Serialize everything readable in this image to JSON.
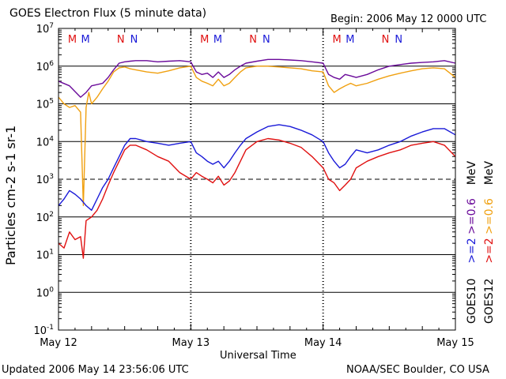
{
  "header": {
    "title": "GOES Electron Flux (5 minute data)",
    "begin": "Begin: 2006 May 12 0000 UTC"
  },
  "footer": {
    "updated": "Updated 2006 May 14 23:56:06 UTC",
    "credit": "NOAA/SEC Boulder, CO USA"
  },
  "colors": {
    "goes10_e06": "#1a1ad8",
    "goes10_e2": "#e01010",
    "goes12_e06": "#6a0a9a",
    "goes12_e2": "#f0a010",
    "marker_m": "#e01010",
    "marker_n": "#1a1ad8"
  },
  "legend": {
    "goes10_label": "GOES10",
    "goes12_label": "GOES12",
    "goes10_e2": ">=2",
    "goes10_e06": ">=0.6",
    "goes12_e2": ">=2",
    "goes12_e06": ">=0.6",
    "unit_top": "MeV",
    "unit_bottom": "MeV"
  },
  "chart_data": {
    "type": "line",
    "title": "GOES Electron Flux (5 minute data)",
    "xlabel": "Universal Time",
    "ylabel": "Particles cm-2 s-1 sr-1",
    "x_ticks": [
      "May 12",
      "May 13",
      "May 14",
      "May 15"
    ],
    "xlim_hours": [
      0,
      72
    ],
    "yscale": "log",
    "ylim": [
      0.1,
      10000000
    ],
    "y_ticks": [
      "10^7",
      "10^6",
      "10^5",
      "10^4",
      "10^3",
      "10^2",
      "10^1",
      "10^0",
      "10^-1"
    ],
    "threshold_dashed": 1000,
    "grid": true,
    "markers": [
      {
        "label": "M",
        "hour": 2.5,
        "color": "red"
      },
      {
        "label": "M",
        "hour": 4.9,
        "color": "blue"
      },
      {
        "label": "N",
        "hour": 11.3,
        "color": "red"
      },
      {
        "label": "N",
        "hour": 13.7,
        "color": "blue"
      },
      {
        "label": "M",
        "hour": 26.5,
        "color": "red"
      },
      {
        "label": "M",
        "hour": 28.9,
        "color": "blue"
      },
      {
        "label": "N",
        "hour": 35.3,
        "color": "red"
      },
      {
        "label": "N",
        "hour": 37.7,
        "color": "blue"
      },
      {
        "label": "M",
        "hour": 50.5,
        "color": "red"
      },
      {
        "label": "M",
        "hour": 52.9,
        "color": "blue"
      },
      {
        "label": "N",
        "hour": 59.3,
        "color": "red"
      },
      {
        "label": "N",
        "hour": 61.7,
        "color": "blue"
      }
    ],
    "series": [
      {
        "name": "GOES12 >=0.6 MeV",
        "hours": [
          0,
          2,
          4,
          5,
          6,
          8,
          9,
          10,
          11,
          12,
          13,
          14,
          16,
          18,
          20,
          22,
          24,
          25,
          26,
          27,
          28,
          29,
          30,
          31,
          32,
          33,
          34,
          36,
          38,
          40,
          42,
          44,
          46,
          48,
          49,
          50,
          51,
          52,
          53,
          54,
          56,
          58,
          60,
          62,
          64,
          66,
          68,
          70,
          72
        ],
        "values": [
          400000,
          300000,
          150000,
          200000,
          300000,
          350000,
          500000,
          800000,
          1200000,
          1300000,
          1350000,
          1400000,
          1400000,
          1300000,
          1350000,
          1400000,
          1300000,
          700000,
          600000,
          650000,
          500000,
          700000,
          500000,
          600000,
          800000,
          1000000,
          1200000,
          1350000,
          1500000,
          1500000,
          1450000,
          1400000,
          1300000,
          1200000,
          600000,
          500000,
          450000,
          600000,
          550000,
          500000,
          600000,
          800000,
          1000000,
          1100000,
          1200000,
          1250000,
          1300000,
          1400000,
          1200000
        ]
      },
      {
        "name": "GOES12 >=2 MeV",
        "hours": [
          0,
          1,
          2,
          3,
          4,
          4.5,
          5,
          5.5,
          6,
          7,
          8,
          9,
          10,
          11,
          12,
          13,
          14,
          16,
          18,
          20,
          22,
          24,
          25,
          26,
          27,
          28,
          29,
          30,
          31,
          32,
          33,
          34,
          36,
          38,
          40,
          42,
          44,
          46,
          48,
          49,
          50,
          51,
          52,
          53,
          54,
          56,
          58,
          60,
          62,
          64,
          66,
          68,
          70,
          72
        ],
        "values": [
          150000,
          100000,
          80000,
          90000,
          60000,
          200,
          80000,
          200000,
          100000,
          150000,
          250000,
          400000,
          700000,
          900000,
          950000,
          850000,
          800000,
          700000,
          650000,
          750000,
          900000,
          1000000,
          500000,
          400000,
          350000,
          300000,
          450000,
          300000,
          350000,
          500000,
          700000,
          900000,
          1000000,
          1000000,
          950000,
          900000,
          850000,
          750000,
          700000,
          300000,
          200000,
          250000,
          300000,
          350000,
          300000,
          350000,
          450000,
          550000,
          650000,
          750000,
          850000,
          900000,
          850000,
          500000
        ]
      },
      {
        "name": "GOES10 >=0.6 MeV",
        "hours": [
          0,
          1,
          2,
          3,
          4,
          5,
          6,
          7,
          8,
          9,
          10,
          11,
          12,
          13,
          14,
          15,
          16,
          18,
          20,
          22,
          24,
          25,
          26,
          27,
          28,
          29,
          30,
          31,
          32,
          33,
          34,
          36,
          38,
          40,
          42,
          44,
          46,
          48,
          49,
          50,
          51,
          52,
          53,
          54,
          56,
          58,
          60,
          62,
          64,
          66,
          68,
          70,
          72
        ],
        "values": [
          200,
          300,
          500,
          400,
          300,
          200,
          150,
          300,
          600,
          1000,
          2000,
          4000,
          8000,
          12000,
          12000,
          11000,
          10000,
          9000,
          8000,
          9000,
          10000,
          5000,
          4000,
          3000,
          2500,
          3000,
          2000,
          3000,
          5000,
          8000,
          12000,
          18000,
          25000,
          28000,
          25000,
          20000,
          15000,
          10000,
          5000,
          3000,
          2000,
          2500,
          4000,
          6000,
          5000,
          6000,
          8000,
          10000,
          14000,
          18000,
          22000,
          22000,
          15000
        ]
      },
      {
        "name": "GOES10 >=2 MeV",
        "hours": [
          0,
          1,
          2,
          3,
          4,
          4.5,
          5,
          6,
          7,
          8,
          9,
          10,
          11,
          12,
          13,
          14,
          16,
          18,
          20,
          22,
          24,
          25,
          26,
          27,
          28,
          29,
          30,
          31,
          32,
          33,
          34,
          36,
          38,
          40,
          42,
          44,
          46,
          48,
          49,
          50,
          51,
          52,
          53,
          54,
          56,
          58,
          60,
          62,
          64,
          66,
          68,
          70,
          72
        ],
        "values": [
          20,
          15,
          40,
          25,
          30,
          8,
          80,
          100,
          150,
          300,
          700,
          1500,
          3000,
          6000,
          8000,
          8000,
          6000,
          4000,
          3000,
          1500,
          1000,
          1500,
          1200,
          1000,
          800,
          1200,
          700,
          900,
          1500,
          3000,
          6000,
          10000,
          12000,
          11000,
          9000,
          7000,
          4000,
          2000,
          1000,
          800,
          500,
          700,
          1000,
          2000,
          3000,
          4000,
          5000,
          6000,
          8000,
          9000,
          10000,
          8000,
          4000
        ]
      }
    ]
  }
}
